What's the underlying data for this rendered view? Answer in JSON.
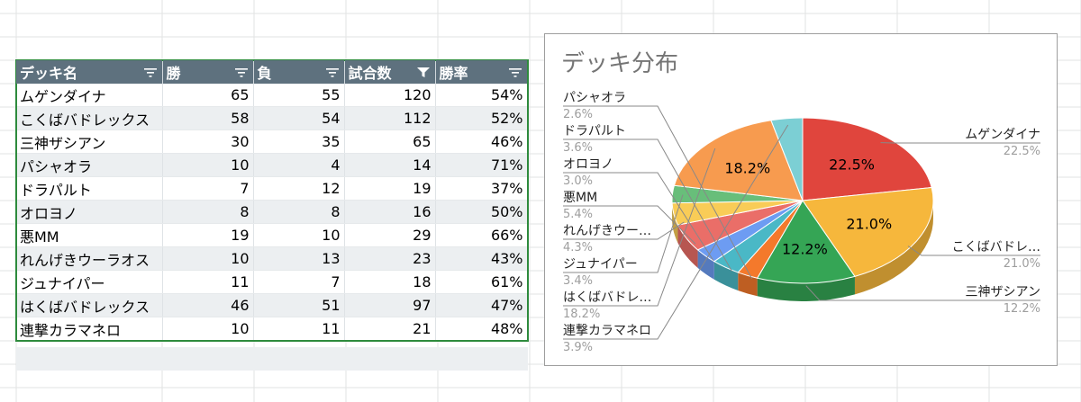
{
  "table": {
    "headers": [
      "デッキ名",
      "勝",
      "負",
      "試合数",
      "勝率"
    ],
    "active_filter_column": 3,
    "rows": [
      [
        "ムゲンダイナ",
        "65",
        "55",
        "120",
        "54%"
      ],
      [
        "こくばバドレックス",
        "58",
        "54",
        "112",
        "52%"
      ],
      [
        "三神ザシアン",
        "30",
        "35",
        "65",
        "46%"
      ],
      [
        "パシャオラ",
        "10",
        "4",
        "14",
        "71%"
      ],
      [
        "ドラパルト",
        "7",
        "12",
        "19",
        "37%"
      ],
      [
        "オロヨノ",
        "8",
        "8",
        "16",
        "50%"
      ],
      [
        "悪MM",
        "19",
        "10",
        "29",
        "66%"
      ],
      [
        "れんげきウーラオス",
        "10",
        "13",
        "23",
        "43%"
      ],
      [
        "ジュナイパー",
        "11",
        "7",
        "18",
        "61%"
      ],
      [
        "はくばバドレックス",
        "46",
        "51",
        "97",
        "47%"
      ],
      [
        "連撃カラマネロ",
        "10",
        "11",
        "21",
        "48%"
      ]
    ]
  },
  "chart_data": {
    "type": "pie",
    "title": "デッキ分布",
    "slices": [
      {
        "label": "ムゲンダイナ",
        "legend_label": "ムゲンダイナ",
        "value": 22.5,
        "pct_label": "22.5%",
        "color": "#e0453d"
      },
      {
        "label": "こくばバドレックス",
        "legend_label": "こくばバドレ…",
        "value": 21.0,
        "pct_label": "21.0%",
        "color": "#f6b73c"
      },
      {
        "label": "三神ザシアン",
        "legend_label": "三神ザシアン",
        "value": 12.2,
        "pct_label": "12.2%",
        "color": "#35a555"
      },
      {
        "label": "パシャオラ",
        "legend_label": "パシャオラ",
        "value": 2.6,
        "pct_label": "2.6%",
        "color": "#f4792b"
      },
      {
        "label": "ドラパルト",
        "legend_label": "ドラパルト",
        "value": 3.6,
        "pct_label": "3.6%",
        "color": "#4ab8c6"
      },
      {
        "label": "オロヨノ",
        "legend_label": "オロヨノ",
        "value": 3.0,
        "pct_label": "3.0%",
        "color": "#6d9cf2"
      },
      {
        "label": "悪MM",
        "legend_label": "悪MM",
        "value": 5.4,
        "pct_label": "5.4%",
        "color": "#ea6e68"
      },
      {
        "label": "れんげきウーラオス",
        "legend_label": "れんげきウー…",
        "value": 4.3,
        "pct_label": "4.3%",
        "color": "#f9cc57"
      },
      {
        "label": "ジュナイパー",
        "legend_label": "ジュナイパー",
        "value": 3.4,
        "pct_label": "3.4%",
        "color": "#68be7a"
      },
      {
        "label": "はくばバドレックス",
        "legend_label": "はくばバドレ…",
        "value": 18.2,
        "pct_label": "18.2%",
        "color": "#f79b4f"
      },
      {
        "label": "連撃カラマネロ",
        "legend_label": "連撃カラマネロ",
        "value": 3.9,
        "pct_label": "3.9%",
        "color": "#7ccfd4"
      }
    ],
    "inside_labels": [
      "22.5%",
      "21.0%",
      "12.2%",
      "18.2%"
    ],
    "legend_placement": "callouts",
    "style": "3d"
  }
}
